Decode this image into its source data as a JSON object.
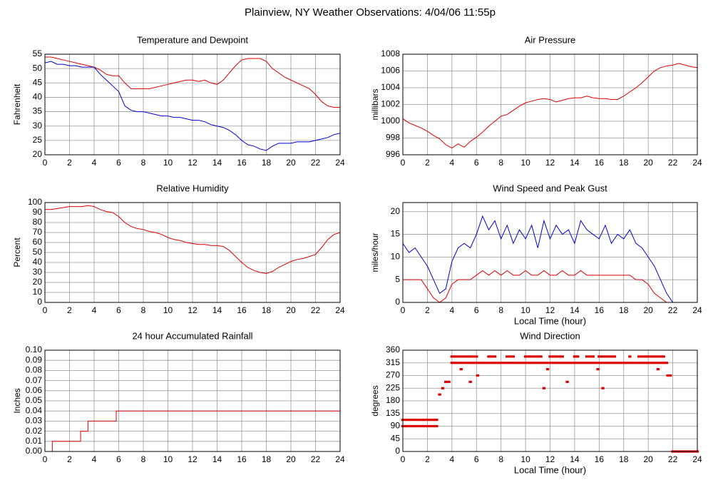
{
  "title": "Plainview, NY Weather Observations: 4/04/06 11:55p",
  "chart_data": [
    {
      "type": "line",
      "title": "Temperature and Dewpoint",
      "ylabel": "Fahrenheit",
      "x": [
        0,
        0.5,
        1,
        1.5,
        2,
        2.5,
        3,
        3.5,
        4,
        4.5,
        5,
        5.5,
        6,
        6.5,
        7,
        7.5,
        8,
        8.5,
        9,
        9.5,
        10,
        10.5,
        11,
        11.5,
        12,
        12.5,
        13,
        13.5,
        14,
        14.5,
        15,
        15.5,
        16,
        16.5,
        17,
        17.5,
        18,
        18.5,
        19,
        19.5,
        20,
        20.5,
        21,
        21.5,
        22,
        22.5,
        23,
        23.5,
        24
      ],
      "series": [
        {
          "color": "#dd0000",
          "values": [
            54,
            54,
            53.5,
            53,
            52.5,
            52,
            51.5,
            51,
            50.5,
            49.5,
            48,
            47.5,
            47.5,
            45,
            43,
            43,
            43,
            43,
            43.5,
            44,
            44.5,
            45,
            45.5,
            46,
            46,
            45.5,
            46,
            45,
            44.5,
            46,
            48.5,
            51,
            53,
            53.5,
            53.5,
            53.5,
            52.5,
            50,
            48.5,
            47,
            46,
            45,
            44,
            43,
            41,
            38.5,
            37,
            36.5,
            36.5
          ]
        },
        {
          "color": "#0000cc",
          "values": [
            52,
            52.5,
            51.5,
            51.5,
            51,
            51,
            50.5,
            50.5,
            50.5,
            48,
            46,
            44,
            42,
            37,
            35.5,
            35,
            35,
            34.5,
            34,
            33.5,
            33.5,
            33,
            33,
            32.5,
            32,
            32,
            31.5,
            30.5,
            30,
            29.5,
            28.5,
            27,
            25,
            23.5,
            23,
            22,
            21.5,
            23,
            24,
            24,
            24,
            24.5,
            24.5,
            24.5,
            25,
            25.5,
            26,
            27,
            27.5
          ]
        }
      ],
      "xlim": [
        0,
        24
      ],
      "xticks": [
        0,
        2,
        4,
        6,
        8,
        10,
        12,
        14,
        16,
        18,
        20,
        22,
        24
      ],
      "ylim": [
        20,
        55
      ],
      "yticks": [
        20,
        25,
        30,
        35,
        40,
        45,
        50,
        55
      ],
      "grid": true
    },
    {
      "type": "line",
      "title": "Air Pressure",
      "ylabel": "millibars",
      "x": [
        0,
        0.5,
        1,
        1.5,
        2,
        2.5,
        3,
        3.5,
        4,
        4.5,
        5,
        5.5,
        6,
        6.5,
        7,
        7.5,
        8,
        8.5,
        9,
        9.5,
        10,
        10.5,
        11,
        11.5,
        12,
        12.5,
        13,
        13.5,
        14,
        14.5,
        15,
        15.5,
        16,
        16.5,
        17,
        17.5,
        18,
        18.5,
        19,
        19.5,
        20,
        20.5,
        21,
        21.5,
        22,
        22.5,
        23,
        23.5,
        24
      ],
      "series": [
        {
          "color": "#dd0000",
          "values": [
            1000.3,
            999.8,
            999.5,
            999.2,
            998.8,
            998.3,
            997.9,
            997.2,
            996.8,
            997.3,
            996.9,
            997.6,
            998.1,
            998.7,
            999.4,
            1000,
            1000.6,
            1000.8,
            1001.3,
            1001.8,
            1002.2,
            1002.4,
            1002.6,
            1002.7,
            1002.6,
            1002.3,
            1002.5,
            1002.7,
            1002.8,
            1002.8,
            1003,
            1002.8,
            1002.7,
            1002.7,
            1002.6,
            1002.6,
            1003,
            1003.5,
            1004,
            1004.6,
            1005.3,
            1006,
            1006.4,
            1006.6,
            1006.7,
            1006.9,
            1006.7,
            1006.5,
            1006.4
          ]
        }
      ],
      "xlim": [
        0,
        24
      ],
      "xticks": [
        0,
        2,
        4,
        6,
        8,
        10,
        12,
        14,
        16,
        18,
        20,
        22,
        24
      ],
      "ylim": [
        996,
        1008
      ],
      "yticks": [
        996,
        998,
        1000,
        1002,
        1004,
        1006,
        1008
      ],
      "grid": true
    },
    {
      "type": "line",
      "title": "Relative Humidity",
      "ylabel": "Percent",
      "x": [
        0,
        0.5,
        1,
        1.5,
        2,
        2.5,
        3,
        3.5,
        4,
        4.5,
        5,
        5.5,
        6,
        6.5,
        7,
        7.5,
        8,
        8.5,
        9,
        9.5,
        10,
        10.5,
        11,
        11.5,
        12,
        12.5,
        13,
        13.5,
        14,
        14.5,
        15,
        15.5,
        16,
        16.5,
        17,
        17.5,
        18,
        18.5,
        19,
        19.5,
        20,
        20.5,
        21,
        21.5,
        22,
        22.5,
        23,
        23.5,
        24
      ],
      "series": [
        {
          "color": "#dd0000",
          "values": [
            93,
            93,
            94,
            95,
            96,
            96,
            96,
            97,
            96,
            93,
            91,
            90,
            86,
            80,
            76,
            74,
            73,
            71,
            70,
            68,
            65,
            63,
            62,
            60,
            59,
            58,
            58,
            57,
            57,
            56,
            52,
            46,
            40,
            35,
            32,
            30,
            29,
            31,
            35,
            38,
            41,
            43,
            44,
            46,
            48,
            55,
            63,
            68,
            70
          ]
        }
      ],
      "xlim": [
        0,
        24
      ],
      "xticks": [
        0,
        2,
        4,
        6,
        8,
        10,
        12,
        14,
        16,
        18,
        20,
        22,
        24
      ],
      "ylim": [
        0,
        100
      ],
      "yticks": [
        0,
        10,
        20,
        30,
        40,
        50,
        60,
        70,
        80,
        90,
        100
      ],
      "grid": true
    },
    {
      "type": "line",
      "title": "Wind Speed and Peak Gust",
      "ylabel": "miles/hour",
      "xlabel": "Local Time (hour)",
      "x": [
        0,
        0.5,
        1,
        1.5,
        2,
        2.5,
        3,
        3.5,
        4,
        4.5,
        5,
        5.5,
        6,
        6.5,
        7,
        7.5,
        8,
        8.5,
        9,
        9.5,
        10,
        10.5,
        11,
        11.5,
        12,
        12.5,
        13,
        13.5,
        14,
        14.5,
        15,
        15.5,
        16,
        16.5,
        17,
        17.5,
        18,
        18.5,
        19,
        19.5,
        20,
        20.5,
        21,
        21.5,
        22,
        22.5,
        23,
        23.5,
        24
      ],
      "series": [
        {
          "color": "#0000cc",
          "values": [
            13,
            11,
            12,
            10,
            8,
            5,
            2,
            3,
            9,
            12,
            13,
            12,
            15,
            19,
            16,
            18,
            14,
            17,
            13,
            16,
            14,
            17,
            12,
            18,
            14,
            17,
            15,
            16,
            13,
            18,
            16,
            15,
            14,
            17,
            13,
            15,
            14,
            16,
            13,
            12,
            10,
            8,
            5,
            2,
            0,
            null,
            null,
            null,
            null
          ]
        },
        {
          "color": "#dd0000",
          "values": [
            5,
            5,
            5,
            5,
            3,
            1,
            0,
            1,
            4,
            5,
            5,
            5,
            6,
            7,
            6,
            7,
            6,
            7,
            6,
            6,
            7,
            6,
            6,
            7,
            6,
            6,
            7,
            6,
            6,
            7,
            6,
            6,
            6,
            6,
            6,
            6,
            6,
            6,
            5,
            5,
            4,
            2,
            1,
            0,
            0,
            null,
            null,
            null,
            null
          ]
        }
      ],
      "xlim": [
        0,
        24
      ],
      "xticks": [
        0,
        2,
        4,
        6,
        8,
        10,
        12,
        14,
        16,
        18,
        20,
        22,
        24
      ],
      "ylim": [
        0,
        22
      ],
      "yticks": [
        0,
        5,
        10,
        15,
        20
      ],
      "grid": true
    },
    {
      "type": "line",
      "title": "24 hour Accumulated Rainfall",
      "ylabel": "Inches",
      "drawstyle": "steps-post",
      "x": [
        0,
        0.6,
        2.9,
        3.5,
        5.8,
        24
      ],
      "series": [
        {
          "color": "#dd0000",
          "values": [
            0,
            0.01,
            0.02,
            0.03,
            0.04,
            0.04
          ]
        }
      ],
      "xlim": [
        0,
        24
      ],
      "xticks": [
        0,
        2,
        4,
        6,
        8,
        10,
        12,
        14,
        16,
        18,
        20,
        22,
        24
      ],
      "ylim": [
        0,
        0.1
      ],
      "yticks": [
        {
          "value": 0,
          "label": "0.00"
        },
        0.01,
        0.02,
        0.03,
        0.04,
        0.05,
        0.06,
        0.07,
        0.08,
        0.09,
        {
          "value": 0.1,
          "label": "0.10"
        }
      ],
      "grid": true
    },
    {
      "type": "scatter",
      "title": "Wind Direction",
      "ylabel": "degrees",
      "xlabel": "Local Time (hour)",
      "color": "#dd0000",
      "x": [
        0,
        0,
        0.25,
        0.25,
        0.5,
        0.5,
        0.75,
        0.75,
        1,
        1,
        1.25,
        1.25,
        1.5,
        1.5,
        1.75,
        1.75,
        2,
        2,
        2.25,
        2.25,
        2.5,
        2.5,
        2.75,
        2.75,
        3,
        3.25,
        3.5,
        3.75,
        4,
        4.25,
        4.5,
        4.75,
        5,
        5.25,
        5.5,
        5.75,
        6,
        6.25,
        6.5,
        6.75,
        7,
        7.25,
        7.5,
        7.75,
        8,
        8.25,
        8.5,
        8.75,
        9,
        9.25,
        9.5,
        9.75,
        10,
        10.25,
        10.5,
        10.75,
        11,
        11.25,
        11.5,
        11.75,
        12,
        12.25,
        12.5,
        12.75,
        13,
        13.25,
        13.5,
        13.75,
        14,
        14.25,
        14.5,
        14.75,
        15,
        15.25,
        15.5,
        15.75,
        16,
        16.25,
        16.5,
        16.75,
        17,
        17.25,
        17.5,
        17.75,
        18,
        18.25,
        18.5,
        18.75,
        19,
        19.25,
        19.5,
        19.75,
        20,
        20.25,
        20.5,
        20.75,
        21,
        21.25,
        21.5,
        4,
        4.25,
        4.5,
        4.75,
        5,
        5.25,
        5.5,
        5.75,
        6,
        7,
        7.25,
        7.5,
        8.5,
        8.75,
        9,
        10,
        10.25,
        10.5,
        10.75,
        11,
        11.25,
        12,
        12.25,
        12.5,
        12.75,
        13,
        14,
        14.25,
        15,
        15.25,
        15.5,
        16,
        16.25,
        16.5,
        16.75,
        17,
        17.25,
        18.5,
        19.25,
        19.5,
        19.75,
        20,
        20.25,
        20.5,
        20.75,
        21,
        21.25,
        4.75,
        5.5,
        6.1,
        11.5,
        11.8,
        13.4,
        15.9,
        16.3,
        20.8,
        21.6,
        21.8,
        22,
        22.25,
        22.5,
        22.75,
        23,
        23.25,
        23.5,
        23.75,
        24
      ],
      "values": [
        90,
        112.5,
        90,
        112.5,
        90,
        112.5,
        90,
        112.5,
        90,
        112.5,
        90,
        112.5,
        90,
        112.5,
        90,
        112.5,
        90,
        112.5,
        90,
        112.5,
        90,
        112.5,
        90,
        112.5,
        202.5,
        225,
        247.5,
        247.5,
        315,
        315,
        315,
        315,
        315,
        315,
        315,
        315,
        315,
        315,
        315,
        315,
        315,
        315,
        315,
        315,
        315,
        315,
        315,
        315,
        315,
        315,
        315,
        315,
        315,
        315,
        315,
        315,
        315,
        315,
        315,
        315,
        315,
        315,
        315,
        315,
        315,
        315,
        315,
        315,
        315,
        315,
        315,
        315,
        315,
        315,
        315,
        315,
        315,
        315,
        315,
        315,
        315,
        315,
        315,
        315,
        315,
        315,
        315,
        315,
        315,
        315,
        315,
        315,
        315,
        315,
        315,
        315,
        315,
        315,
        315,
        337.5,
        337.5,
        337.5,
        337.5,
        337.5,
        337.5,
        337.5,
        337.5,
        337.5,
        337.5,
        337.5,
        337.5,
        337.5,
        337.5,
        337.5,
        337.5,
        337.5,
        337.5,
        337.5,
        337.5,
        337.5,
        337.5,
        337.5,
        337.5,
        337.5,
        337.5,
        337.5,
        337.5,
        337.5,
        337.5,
        337.5,
        337.5,
        337.5,
        337.5,
        337.5,
        337.5,
        337.5,
        337.5,
        337.5,
        337.5,
        337.5,
        337.5,
        337.5,
        337.5,
        337.5,
        337.5,
        337.5,
        292.5,
        247.5,
        270,
        225,
        292.5,
        247.5,
        292.5,
        225,
        292.5,
        270,
        270,
        0,
        0,
        0,
        0,
        0,
        0,
        0,
        0,
        0
      ],
      "xlim": [
        0,
        24
      ],
      "xticks": [
        0,
        2,
        4,
        6,
        8,
        10,
        12,
        14,
        16,
        18,
        20,
        22,
        24
      ],
      "ylim": [
        0,
        360
      ],
      "yticks": [
        0,
        45,
        90,
        135,
        180,
        225,
        270,
        315,
        360
      ],
      "grid": true
    }
  ]
}
